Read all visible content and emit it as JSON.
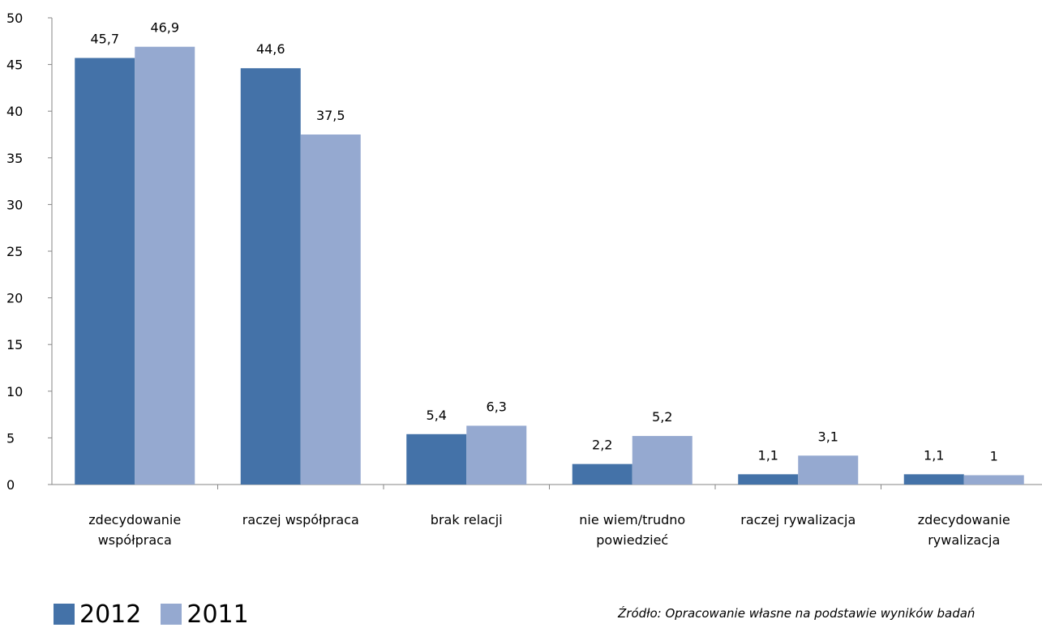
{
  "chart_data": {
    "type": "bar",
    "categories": [
      [
        "zdecydowanie",
        "współpraca"
      ],
      [
        "raczej współpraca"
      ],
      [
        "brak relacji"
      ],
      [
        "nie wiem/trudno",
        "powiedzieć"
      ],
      [
        "raczej rywalizacja"
      ],
      [
        "zdecydowanie",
        "rywalizacja"
      ]
    ],
    "series": [
      {
        "name": "2012",
        "color": "#4472a8",
        "values": [
          45.7,
          44.6,
          5.4,
          2.2,
          1.1,
          1.1
        ],
        "labels": [
          "45,7",
          "44,6",
          "5,4",
          "2,2",
          "1,1",
          "1,1"
        ]
      },
      {
        "name": "2011",
        "color": "#95a9d0",
        "values": [
          46.9,
          37.5,
          6.3,
          5.2,
          3.1,
          1
        ],
        "labels": [
          "46,9",
          "37,5",
          "6,3",
          "5,2",
          "3,1",
          "1"
        ]
      }
    ],
    "ylim": [
      0,
      50
    ],
    "yticks": [
      0,
      5,
      10,
      15,
      20,
      25,
      30,
      35,
      40,
      45,
      50
    ],
    "grid": false,
    "legend": "bottom-left"
  },
  "source_note": "Źródło: Opracowanie własne na podstawie wyników badań"
}
